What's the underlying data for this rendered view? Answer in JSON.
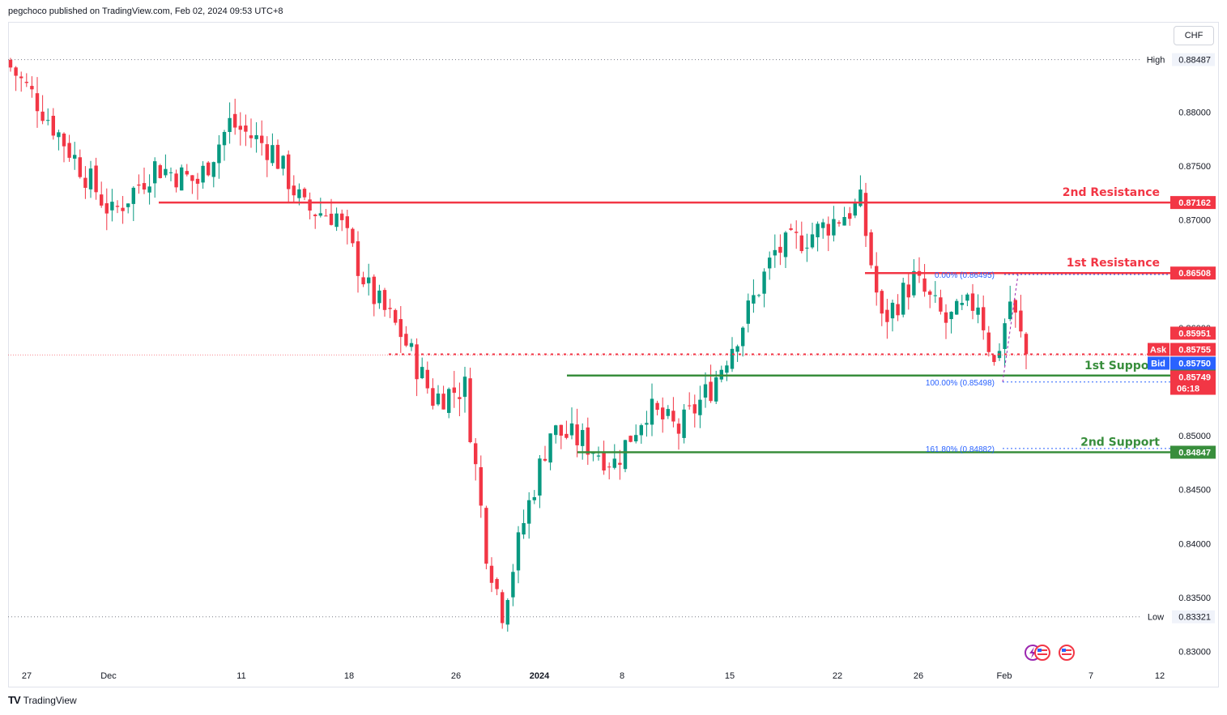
{
  "header": {
    "publisher": "pegchoco published on TradingView.com, Feb 02, 2024 09:53 UTC+8"
  },
  "currency": "CHF",
  "footer": {
    "brand_mark": "TV",
    "brand": "TradingView"
  },
  "colors": {
    "up": "#089981",
    "down": "#f23645",
    "resistance": "#f23645",
    "support": "#388e3c",
    "fib": "#2962ff",
    "bid": "#2962ff"
  },
  "chart_data": {
    "type": "candlestick",
    "y_axis": {
      "min": 0.828,
      "max": 0.8855,
      "ticks": [
        "0.88000",
        "0.87500",
        "0.87000",
        "0.86500",
        "0.86000",
        "0.85500",
        "0.85000",
        "0.84500",
        "0.84000",
        "0.83500",
        "0.83000"
      ]
    },
    "x_axis": {
      "ticks": [
        "27",
        "Dec",
        "11",
        "18",
        "26",
        "2024",
        "8",
        "15",
        "22",
        "26",
        "Feb",
        "7",
        "12"
      ]
    },
    "high": {
      "label": "High",
      "value": "0.88487"
    },
    "low": {
      "label": "Low",
      "value": "0.83321"
    },
    "levels": [
      {
        "name": "2nd Resistance",
        "value": "0.87162",
        "kind": "resistance"
      },
      {
        "name": "1st Resistance",
        "value": "0.86508",
        "kind": "resistance"
      },
      {
        "name": "1st Support",
        "value": "0.85558",
        "kind": "support"
      },
      {
        "name": "2nd Support",
        "value": "0.84847",
        "kind": "support"
      }
    ],
    "pivot_line": {
      "value": "0.85951"
    },
    "ask": {
      "label": "Ask",
      "value": "0.85755"
    },
    "bid": {
      "label": "Bid",
      "value": "0.85750"
    },
    "last": {
      "value": "0.85749",
      "countdown": "06:18"
    },
    "fib": [
      {
        "label": "0.00% (0.86495)",
        "value": 0.86495
      },
      {
        "label": "100.00% (0.85498)",
        "value": 0.85498
      },
      {
        "label": "161.80% (0.84882)",
        "value": 0.84882
      }
    ],
    "anchors": [
      {
        "t": 0,
        "p": 0.8848
      },
      {
        "t": 6,
        "p": 0.881
      },
      {
        "t": 12,
        "p": 0.8765
      },
      {
        "t": 20,
        "p": 0.8705
      },
      {
        "t": 28,
        "p": 0.875
      },
      {
        "t": 36,
        "p": 0.8735
      },
      {
        "t": 42,
        "p": 0.879
      },
      {
        "t": 50,
        "p": 0.8765
      },
      {
        "t": 56,
        "p": 0.871
      },
      {
        "t": 62,
        "p": 0.8705
      },
      {
        "t": 68,
        "p": 0.8635
      },
      {
        "t": 74,
        "p": 0.8595
      },
      {
        "t": 80,
        "p": 0.8535
      },
      {
        "t": 86,
        "p": 0.8545
      },
      {
        "t": 90,
        "p": 0.8395
      },
      {
        "t": 93,
        "p": 0.8338
      },
      {
        "t": 97,
        "p": 0.842
      },
      {
        "t": 102,
        "p": 0.8505
      },
      {
        "t": 108,
        "p": 0.8495
      },
      {
        "t": 114,
        "p": 0.8475
      },
      {
        "t": 120,
        "p": 0.8525
      },
      {
        "t": 126,
        "p": 0.8505
      },
      {
        "t": 132,
        "p": 0.8545
      },
      {
        "t": 138,
        "p": 0.8605
      },
      {
        "t": 144,
        "p": 0.867
      },
      {
        "t": 152,
        "p": 0.869
      },
      {
        "t": 160,
        "p": 0.8715
      },
      {
        "t": 164,
        "p": 0.8605
      },
      {
        "t": 170,
        "p": 0.8645
      },
      {
        "t": 176,
        "p": 0.8605
      },
      {
        "t": 182,
        "p": 0.8625
      },
      {
        "t": 185,
        "p": 0.8565
      },
      {
        "t": 188,
        "p": 0.8625
      },
      {
        "t": 191,
        "p": 0.8575
      }
    ]
  }
}
